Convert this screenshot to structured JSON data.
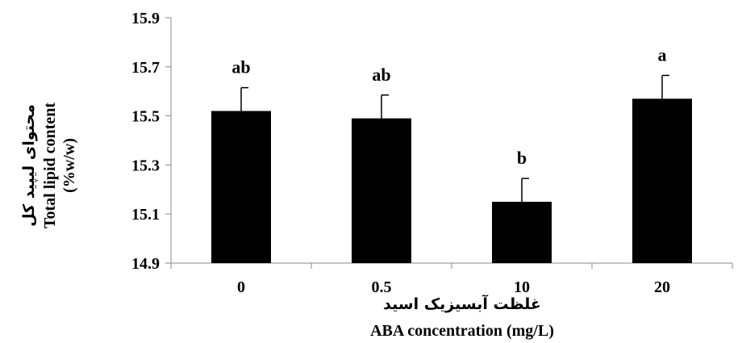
{
  "chart_data": {
    "type": "bar",
    "categories": [
      "0",
      "0.5",
      "10",
      "20"
    ],
    "values": [
      15.52,
      15.49,
      15.15,
      15.57
    ],
    "errors": [
      0.095,
      0.095,
      0.095,
      0.095
    ],
    "significance_letters": [
      "ab",
      "ab",
      "b",
      "a"
    ],
    "ylim": [
      14.9,
      15.9
    ],
    "yticks": [
      "14.9",
      "15.1",
      "15.3",
      "15.5",
      "15.7",
      "15.9"
    ],
    "ylabel_fa": "محتوای لیپید کل",
    "ylabel_en": "Total lipid content",
    "ylabel_unit": "(%w/w)",
    "xlabel_fa": "غلظت آبسیزیک اسید",
    "xlabel_en": "ABA concentration (mg/L)",
    "bar_color": "#000000",
    "grid": false
  }
}
